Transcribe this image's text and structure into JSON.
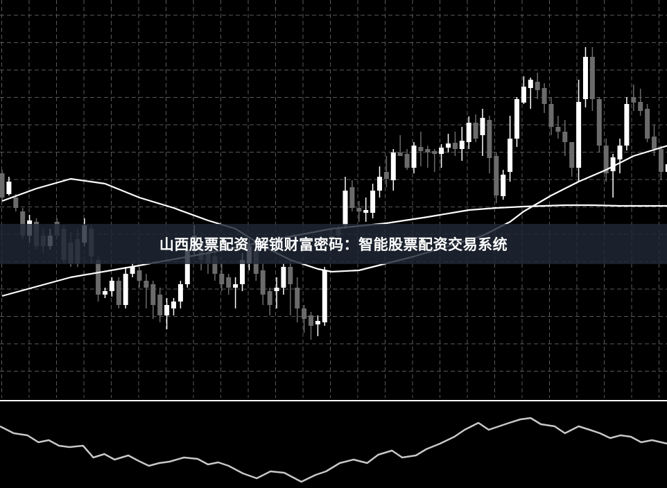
{
  "banner": {
    "title": "山西股票配资 解锁财富密码：智能股票配资交易系统"
  },
  "colors": {
    "background": "#000000",
    "grid": "#5a5a5a",
    "up_candle": "#ffffff",
    "down_candle": "#6b6b6b",
    "ma_line": "#ffffff",
    "oscillator": "#c8c8c8",
    "banner": "#202836"
  },
  "chart_data": [
    {
      "type": "candlestick",
      "title": "",
      "grid": true,
      "ohlc_format": [
        "open",
        "high",
        "low",
        "close"
      ],
      "candles": [
        [
          250,
          255,
          210,
          215
        ],
        [
          220,
          245,
          218,
          238
        ],
        [
          215,
          220,
          195,
          200
        ],
        [
          195,
          200,
          155,
          160
        ],
        [
          160,
          190,
          150,
          182
        ],
        [
          180,
          185,
          140,
          145
        ],
        [
          160,
          170,
          135,
          145
        ],
        [
          145,
          170,
          140,
          160
        ],
        [
          180,
          185,
          155,
          160
        ],
        [
          170,
          175,
          120,
          125
        ],
        [
          150,
          165,
          115,
          120
        ],
        [
          155,
          170,
          115,
          120
        ],
        [
          150,
          185,
          145,
          175
        ],
        [
          170,
          175,
          120,
          130
        ],
        [
          125,
          130,
          65,
          75
        ],
        [
          75,
          85,
          70,
          80
        ],
        [
          80,
          100,
          72,
          95
        ],
        [
          95,
          100,
          55,
          60
        ],
        [
          60,
          115,
          55,
          105
        ],
        [
          105,
          120,
          100,
          115
        ],
        [
          110,
          115,
          85,
          95
        ],
        [
          95,
          105,
          55,
          85
        ],
        [
          90,
          95,
          40,
          60
        ],
        [
          75,
          85,
          35,
          45
        ],
        [
          45,
          70,
          25,
          60
        ],
        [
          55,
          70,
          45,
          65
        ],
        [
          65,
          95,
          55,
          90
        ],
        [
          90,
          150,
          85,
          140
        ],
        [
          140,
          175,
          130,
          160
        ],
        [
          150,
          160,
          110,
          125
        ],
        [
          135,
          145,
          105,
          120
        ],
        [
          130,
          150,
          95,
          105
        ],
        [
          105,
          120,
          80,
          90
        ],
        [
          100,
          105,
          75,
          85
        ],
        [
          85,
          100,
          55,
          90
        ],
        [
          90,
          135,
          80,
          125
        ],
        [
          120,
          155,
          110,
          145
        ],
        [
          140,
          155,
          95,
          105
        ],
        [
          110,
          120,
          60,
          75
        ],
        [
          80,
          85,
          45,
          60
        ],
        [
          80,
          100,
          55,
          85
        ],
        [
          85,
          120,
          75,
          115
        ],
        [
          115,
          125,
          45,
          90
        ],
        [
          85,
          100,
          35,
          55
        ],
        [
          55,
          60,
          20,
          40
        ],
        [
          45,
          50,
          10,
          30
        ],
        [
          32,
          45,
          15,
          37
        ],
        [
          35,
          115,
          30,
          110
        ],
        [
          160,
          170,
          140,
          150
        ],
        [
          170,
          175,
          155,
          160
        ],
        [
          175,
          245,
          170,
          225
        ],
        [
          230,
          240,
          195,
          200
        ],
        [
          200,
          210,
          180,
          195
        ],
        [
          193,
          215,
          180,
          197
        ],
        [
          193,
          235,
          185,
          225
        ],
        [
          225,
          260,
          215,
          245
        ],
        [
          252,
          275,
          230,
          242
        ],
        [
          240,
          285,
          225,
          280
        ],
        [
          280,
          305,
          275,
          275
        ],
        [
          278,
          285,
          255,
          258
        ],
        [
          258,
          295,
          250,
          290
        ],
        [
          288,
          310,
          260,
          282
        ],
        [
          285,
          290,
          258,
          280
        ],
        [
          282,
          285,
          252,
          278
        ],
        [
          278,
          292,
          258,
          287
        ],
        [
          287,
          307,
          280,
          293
        ],
        [
          294,
          310,
          275,
          285
        ],
        [
          285,
          317,
          268,
          297
        ],
        [
          295,
          332,
          285,
          323
        ],
        [
          323,
          335,
          295,
          300
        ],
        [
          305,
          343,
          275,
          330
        ],
        [
          327,
          333,
          250,
          272
        ],
        [
          275,
          280,
          207,
          218
        ],
        [
          217,
          255,
          212,
          248
        ],
        [
          252,
          333,
          238,
          300
        ],
        [
          300,
          360,
          288,
          357
        ],
        [
          352,
          390,
          350,
          375
        ],
        [
          373,
          388,
          343,
          385
        ],
        [
          382,
          395,
          357,
          370
        ],
        [
          373,
          380,
          337,
          350
        ],
        [
          350,
          360,
          305,
          317
        ],
        [
          317,
          333,
          300,
          310
        ],
        [
          310,
          327,
          275,
          295
        ],
        [
          295,
          295,
          245,
          258
        ],
        [
          258,
          385,
          238,
          353
        ],
        [
          357,
          432,
          345,
          418
        ],
        [
          418,
          432,
          340,
          357
        ],
        [
          357,
          360,
          280,
          290
        ],
        [
          290,
          300,
          238,
          250
        ],
        [
          253,
          278,
          215,
          273
        ],
        [
          270,
          300,
          250,
          290
        ],
        [
          290,
          360,
          283,
          350
        ],
        [
          360,
          378,
          340,
          352
        ],
        [
          353,
          372,
          333,
          340
        ],
        [
          343,
          350,
          295,
          300
        ],
        [
          303,
          320,
          275,
          285
        ],
        [
          285,
          290,
          240,
          252
        ],
        [
          252,
          270,
          248,
          263
        ]
      ],
      "series": [
        {
          "type": "line",
          "points": [
            [
              0,
              210
            ],
            [
              5,
              228
            ],
            [
              10,
              242
            ],
            [
              15,
              235
            ],
            [
              20,
              215
            ],
            [
              25,
              200
            ],
            [
              30,
              182
            ],
            [
              34,
              170
            ],
            [
              38,
              145
            ],
            [
              42,
              125
            ],
            [
              46,
              112
            ],
            [
              48,
              108
            ],
            [
              52,
              110
            ],
            [
              56,
              120
            ],
            [
              60,
              130
            ],
            [
              65,
              145
            ],
            [
              70,
              160
            ],
            [
              74,
              180
            ],
            [
              76,
              195
            ],
            [
              80,
              218
            ],
            [
              84,
              238
            ],
            [
              88,
              255
            ],
            [
              92,
              275
            ],
            [
              97,
              290
            ]
          ]
        },
        {
          "type": "line",
          "points": [
            [
              0,
              73
            ],
            [
              10,
              100
            ],
            [
              20,
              117
            ],
            [
              30,
              135
            ],
            [
              40,
              155
            ],
            [
              48,
              170
            ],
            [
              56,
              178
            ],
            [
              62,
              187
            ],
            [
              68,
              197
            ],
            [
              72,
              200
            ],
            [
              76,
              202
            ],
            [
              82,
              204
            ],
            [
              86,
              204
            ],
            [
              90,
              203
            ],
            [
              97,
              203
            ]
          ]
        }
      ]
    },
    {
      "type": "line",
      "title": "",
      "points": [
        [
          0,
          85
        ],
        [
          2,
          75
        ],
        [
          4,
          72
        ],
        [
          5.6,
          62
        ],
        [
          7.1,
          65
        ],
        [
          8.6,
          57
        ],
        [
          10.1,
          55
        ],
        [
          12.1,
          57
        ],
        [
          13.6,
          40
        ],
        [
          15.2,
          45
        ],
        [
          16.7,
          37
        ],
        [
          18.7,
          43
        ],
        [
          20.2,
          35
        ],
        [
          21.7,
          28
        ],
        [
          23.2,
          32
        ],
        [
          24.7,
          34
        ],
        [
          26.8,
          40
        ],
        [
          28.8,
          38
        ],
        [
          30.3,
          30
        ],
        [
          31.8,
          33
        ],
        [
          33.3,
          28
        ],
        [
          35.4,
          17
        ],
        [
          37.4,
          10
        ],
        [
          39.4,
          20
        ],
        [
          41.4,
          18
        ],
        [
          43.9,
          5
        ],
        [
          46,
          15
        ],
        [
          47.5,
          20
        ],
        [
          49.5,
          32
        ],
        [
          51.5,
          37
        ],
        [
          53.5,
          32
        ],
        [
          55.1,
          44
        ],
        [
          57.1,
          50
        ],
        [
          58.6,
          40
        ],
        [
          60.6,
          43
        ],
        [
          62.1,
          52
        ],
        [
          64.1,
          60
        ],
        [
          66.2,
          70
        ],
        [
          67.7,
          80
        ],
        [
          69.7,
          90
        ],
        [
          71.2,
          80
        ],
        [
          72.7,
          85
        ],
        [
          74.2,
          90
        ],
        [
          75.8,
          95
        ],
        [
          77.3,
          97
        ],
        [
          78.8,
          88
        ],
        [
          80.8,
          85
        ],
        [
          82.3,
          75
        ],
        [
          84.3,
          85
        ],
        [
          85.9,
          80
        ],
        [
          87.4,
          75
        ],
        [
          88.9,
          68
        ],
        [
          90.4,
          72
        ],
        [
          91.9,
          70
        ],
        [
          93.4,
          62
        ],
        [
          95,
          65
        ],
        [
          97.2,
          60
        ]
      ]
    }
  ]
}
